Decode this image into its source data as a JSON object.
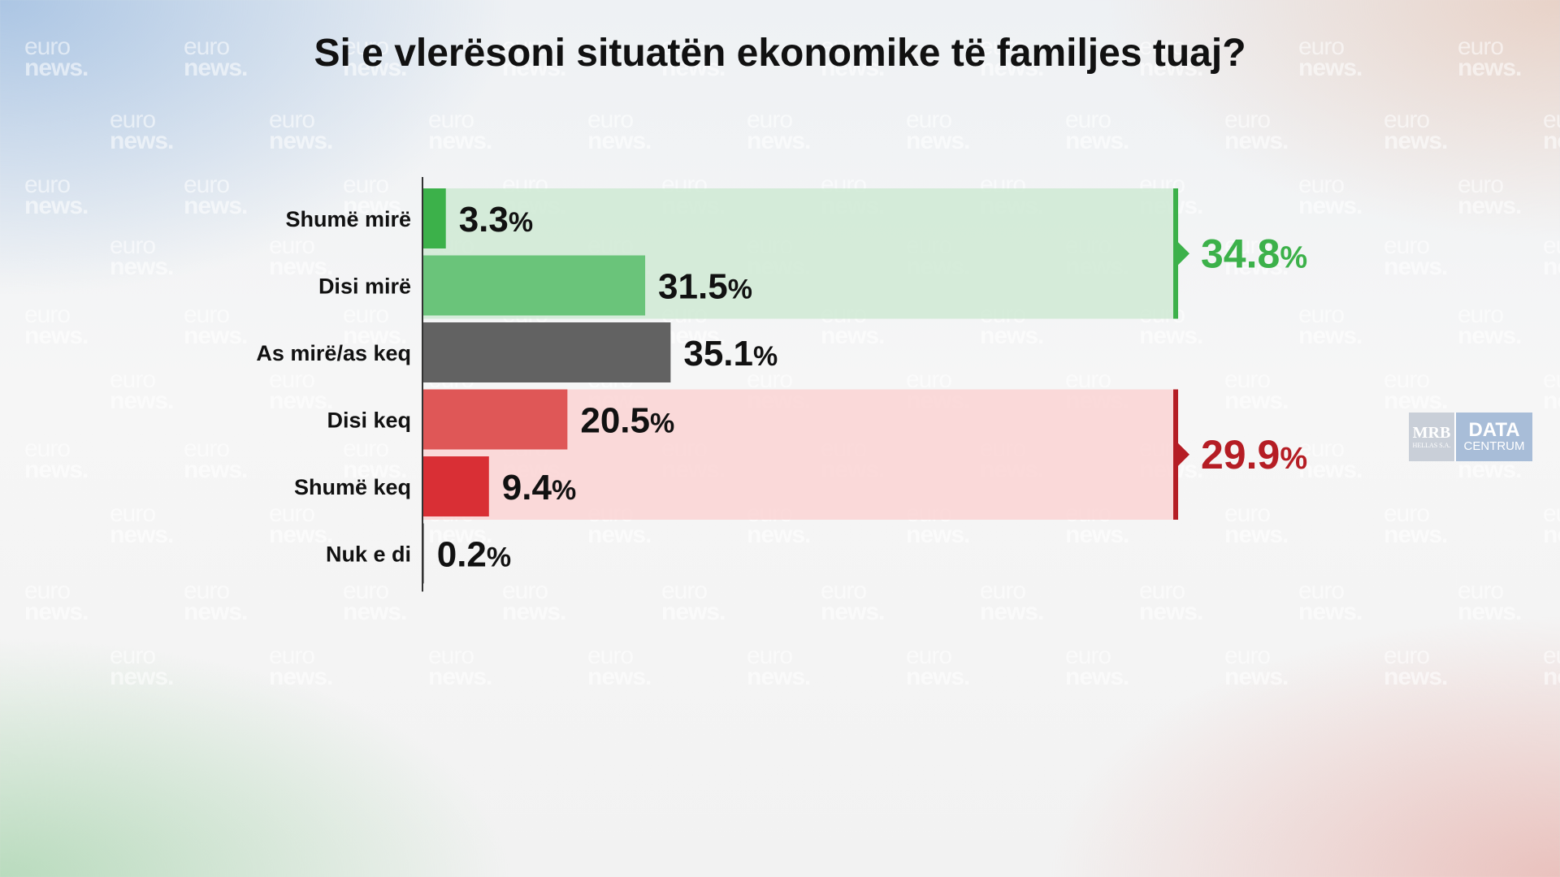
{
  "watermark": {
    "line1": "euro",
    "line2": "news."
  },
  "logo": {
    "mrb": "MRB",
    "mrb_sub": "HELLAS S.A.",
    "data": "DATA",
    "centrum": "CENTRUM"
  },
  "colors": {
    "shume_mire": "#3cb14a",
    "disi_mire": "#6ac47a",
    "neutral": "#626262",
    "disi_keq": "#df5757",
    "shume_keq": "#d92f35",
    "positive_group_bg": "#cfe9d3",
    "negative_group_bg": "#fad3d3",
    "positive_accent": "#3cb14a",
    "negative_accent": "#b51d24",
    "axis": "#333333"
  },
  "chart_data": {
    "type": "bar",
    "orientation": "horizontal",
    "title": "Si e vlerësoni situatën ekonomike të familjes tuaj?",
    "categories": [
      "Shumë mirë",
      "Disi mirë",
      "As mirë/as keq",
      "Disi keq",
      "Shumë keq",
      "Nuk e di"
    ],
    "values": [
      3.3,
      31.5,
      35.1,
      20.5,
      9.4,
      0.2
    ],
    "value_labels": [
      "3.3",
      "31.5",
      "35.1",
      "20.5",
      "9.4",
      "0.2"
    ],
    "unit": "%",
    "xlim": [
      0,
      100
    ],
    "grid": false,
    "groups": [
      {
        "label": "34.8",
        "value": 34.8,
        "categories": [
          "Shumë mirë",
          "Disi mirë"
        ]
      },
      {
        "label": "29.9",
        "value": 29.9,
        "categories": [
          "Disi keq",
          "Shumë keq"
        ]
      }
    ]
  }
}
